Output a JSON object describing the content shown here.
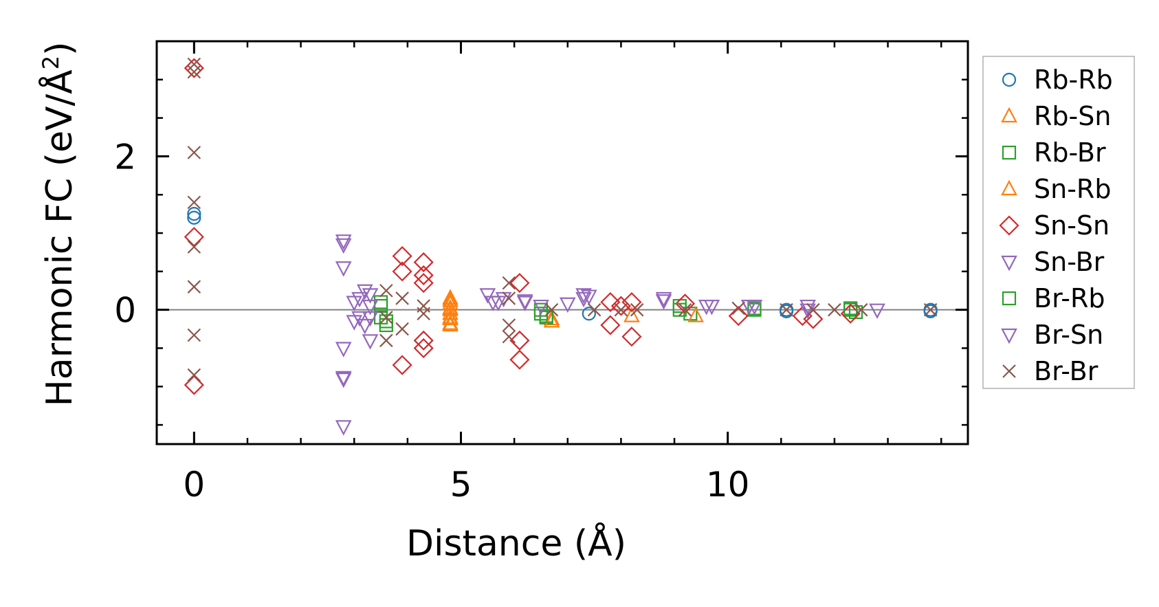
{
  "chart_data": {
    "type": "scatter",
    "xlabel": "Distance (Å)",
    "ylabel_main": "Harmonic FC (eV/Å",
    "ylabel_sup": "2",
    "ylabel_close": ")",
    "xlim": [
      -0.7,
      14.5
    ],
    "ylim": [
      -1.75,
      3.5
    ],
    "xticks": [
      0,
      5,
      10
    ],
    "yticks": [
      0,
      2
    ],
    "xticks_minor": [
      0,
      1,
      2,
      3,
      4,
      5,
      6,
      7,
      8,
      9,
      10,
      11,
      12,
      13,
      14
    ],
    "yticks_minor": [
      -1.5,
      -1.0,
      -0.5,
      0,
      0.5,
      1.0,
      1.5,
      2.0,
      2.5,
      3.0
    ],
    "zero_line": true,
    "legend_position": "outside-right",
    "series": [
      {
        "name": "Rb-Rb",
        "marker": "circle",
        "color": "#1f77b4",
        "x": [
          0,
          0,
          7.4,
          11.1,
          11.1,
          13.8,
          13.8
        ],
        "y": [
          1.25,
          1.2,
          -0.05,
          0.0,
          -0.02,
          0.0,
          -0.02
        ]
      },
      {
        "name": "Rb-Sn",
        "marker": "triangle-up",
        "color": "#ff7f0e",
        "x": [
          4.8,
          4.8,
          4.8,
          4.8,
          4.8,
          4.8,
          6.7
        ],
        "y": [
          0.15,
          0.08,
          0.02,
          -0.05,
          -0.12,
          -0.18,
          -0.12
        ]
      },
      {
        "name": "Rb-Br",
        "marker": "square",
        "color": "#2ca02c",
        "x": [
          3.5,
          3.5,
          3.6,
          6.5,
          6.6,
          9.1,
          9.3,
          10.5,
          12.3,
          12.4
        ],
        "y": [
          0.1,
          -0.1,
          -0.2,
          -0.05,
          -0.1,
          0.05,
          -0.05,
          0.0,
          0.0,
          -0.03
        ]
      },
      {
        "name": "Sn-Rb",
        "marker": "triangle-up",
        "color": "#ff7f0e",
        "x": [
          4.8,
          4.8,
          4.8,
          4.8,
          6.7,
          8.2,
          9.4
        ],
        "y": [
          0.12,
          0.0,
          -0.1,
          -0.2,
          -0.15,
          -0.08,
          -0.08
        ]
      },
      {
        "name": "Sn-Sn",
        "marker": "diamond",
        "color": "#d62728",
        "x": [
          0,
          0,
          0,
          3.9,
          3.9,
          3.9,
          4.3,
          4.3,
          4.3,
          4.3,
          4.3,
          6.1,
          6.1,
          6.1,
          7.8,
          7.8,
          8.0,
          8.2,
          8.2,
          9.2,
          10.2,
          11.4,
          11.6,
          12.3
        ],
        "y": [
          3.15,
          0.95,
          -0.98,
          0.7,
          0.5,
          -0.72,
          0.62,
          0.45,
          0.35,
          -0.4,
          -0.5,
          0.35,
          -0.4,
          -0.65,
          0.1,
          -0.2,
          0.05,
          0.1,
          -0.35,
          0.08,
          -0.08,
          -0.08,
          -0.12,
          -0.05
        ]
      },
      {
        "name": "Sn-Br",
        "marker": "triangle-down",
        "color": "#9467bd",
        "x": [
          2.8,
          2.8,
          2.8,
          2.8,
          2.8,
          3.0,
          3.1,
          3.2,
          3.3,
          3.3,
          5.5,
          5.7,
          6.2,
          7.3,
          7.4,
          8.8,
          9.6,
          10.4,
          11.5
        ],
        "y": [
          0.9,
          0.55,
          -0.5,
          -0.88,
          -1.52,
          -0.15,
          0.15,
          -0.2,
          0.2,
          -0.4,
          0.2,
          0.1,
          0.12,
          0.15,
          0.18,
          0.15,
          0.05,
          0.05,
          0.05
        ]
      },
      {
        "name": "Br-Rb",
        "marker": "square",
        "color": "#2ca02c",
        "x": [
          3.5,
          3.6,
          6.5,
          6.6,
          9.1,
          10.5,
          12.3
        ],
        "y": [
          0.05,
          -0.15,
          0.0,
          -0.08,
          0.0,
          0.02,
          0.02
        ]
      },
      {
        "name": "Br-Sn",
        "marker": "triangle-down",
        "color": "#9467bd",
        "x": [
          2.8,
          2.8,
          3.0,
          3.1,
          3.2,
          3.3,
          3.3,
          5.6,
          5.8,
          6.2,
          6.5,
          7.0,
          7.3,
          8.8,
          9.7,
          10.4,
          10.5,
          11.5,
          12.8
        ],
        "y": [
          0.85,
          -0.9,
          0.1,
          -0.1,
          0.25,
          -0.1,
          0.05,
          0.1,
          0.15,
          0.1,
          0.05,
          0.08,
          0.2,
          0.12,
          0.05,
          0.05,
          0.05,
          0.0,
          0.0
        ]
      },
      {
        "name": "Br-Br",
        "marker": "x",
        "color": "#8c564b",
        "x": [
          0,
          0,
          0,
          0,
          0,
          0,
          0,
          0,
          3.6,
          3.6,
          3.6,
          3.9,
          3.9,
          4.3,
          4.3,
          5.9,
          5.9,
          5.9,
          5.9,
          6.7,
          7.5,
          8.0,
          8.3,
          9.2,
          10.2,
          11.1,
          11.6,
          12.0,
          12.5,
          13.8
        ],
        "y": [
          3.2,
          3.1,
          2.05,
          1.4,
          0.82,
          0.3,
          -0.33,
          -0.85,
          0.25,
          -0.1,
          -0.4,
          0.15,
          -0.25,
          0.05,
          -0.05,
          0.35,
          0.15,
          -0.2,
          -0.35,
          0.0,
          0.0,
          0.0,
          0.0,
          0.0,
          0.02,
          0.0,
          0.0,
          0.0,
          0.0,
          0.0
        ]
      }
    ]
  }
}
